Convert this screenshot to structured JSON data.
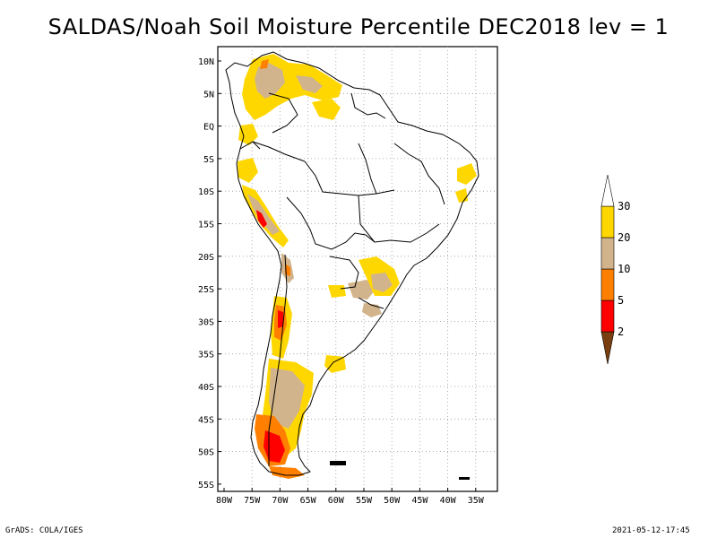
{
  "title": "SALDAS/Noah Soil Moisture Percentile DEC2018 lev = 1",
  "axes": {
    "lon_labels": [
      "80W",
      "75W",
      "70W",
      "65W",
      "60W",
      "55W",
      "50W",
      "45W",
      "40W",
      "35W"
    ],
    "lat_labels": [
      "10N",
      "5N",
      "EQ",
      "5S",
      "10S",
      "15S",
      "20S",
      "25S",
      "30S",
      "35S",
      "40S",
      "45S",
      "50S",
      "55S"
    ]
  },
  "legend": {
    "colors": [
      "#7a3f10",
      "#ff0000",
      "#ff8000",
      "#d2b48c",
      "#ffd700",
      "#ffffff"
    ],
    "labels": [
      "2",
      "5",
      "10",
      "20",
      "30"
    ]
  },
  "footer": {
    "left": "GrADS: COLA/IGES",
    "right": "2021-05-12-17:45"
  },
  "map": {
    "region": "South America",
    "grid": true,
    "fill_colors": {
      "yellow": "#ffd700",
      "tan": "#d2b48c",
      "orange": "#ff8000",
      "red": "#ff0000",
      "brown": "#7a3f10"
    }
  }
}
